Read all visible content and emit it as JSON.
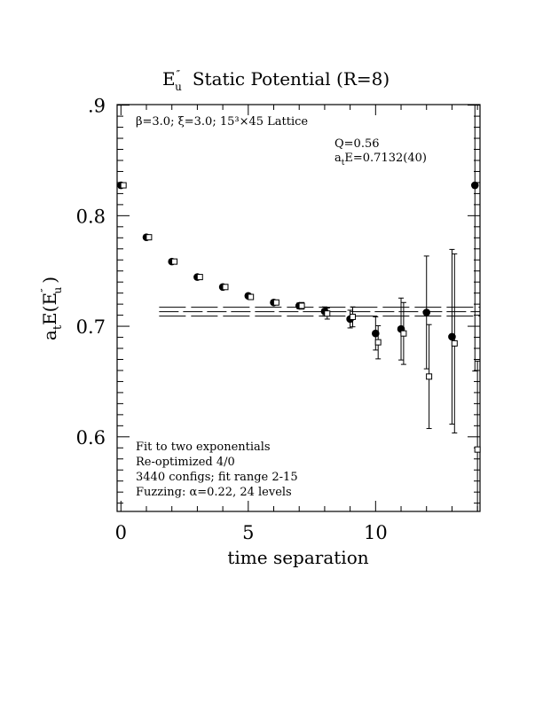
{
  "chart_data": {
    "type": "scatter",
    "title_main": "E",
    "title_sup": "″",
    "title_sub": "u",
    "title_rest": "Static Potential (R=8)",
    "xlabel": "time separation",
    "ylabel_a": "a",
    "ylabel_t": "t",
    "ylabel_E": "E(E",
    "ylabel_sup": "″",
    "ylabel_sub": "u",
    "ylabel_close": ")",
    "xlim": [
      -0.15,
      14.1
    ],
    "ylim": [
      0.5325,
      0.9005
    ],
    "x_ticks": [
      0,
      5,
      10
    ],
    "x_tick_labels": [
      "0",
      "5",
      "10"
    ],
    "y_ticks": [
      0.6,
      0.7,
      0.8,
      0.9
    ],
    "y_tick_labels": [
      "0.6",
      "0.7",
      "0.8",
      ".9"
    ],
    "grid": false,
    "legend": "none",
    "annotations": {
      "lattice": "β=3.0; ξ=3.0; 15³×45 Lattice",
      "q_value": "Q=0.56",
      "energy_a": "a",
      "energy_t": "t",
      "energy_rest": "E=0.7132(40)",
      "fit_lines": [
        "Fit to two exponentials",
        "Re-optimized 4/0",
        "3440 configs; fit range 2-15",
        "Fuzzing: α=0.22, 24 levels"
      ]
    },
    "fit": {
      "x_start": 1.5,
      "x_end": 14.1,
      "value": 0.7132,
      "error": 0.004
    },
    "series": [
      {
        "marker": "filled-circle",
        "points": [
          {
            "x": 0,
            "y": 0.8275,
            "err": 0.002
          },
          {
            "x": 1,
            "y": 0.7805,
            "err": 0.0015
          },
          {
            "x": 2,
            "y": 0.7585,
            "err": 0.0015
          },
          {
            "x": 3,
            "y": 0.7445,
            "err": 0.0015
          },
          {
            "x": 4,
            "y": 0.7355,
            "err": 0.0015
          },
          {
            "x": 5,
            "y": 0.7275,
            "err": 0.0015
          },
          {
            "x": 6,
            "y": 0.7215,
            "err": 0.002
          },
          {
            "x": 7,
            "y": 0.7185,
            "err": 0.0025
          },
          {
            "x": 8,
            "y": 0.7135,
            "err": 0.004
          },
          {
            "x": 9,
            "y": 0.7065,
            "err": 0.008
          },
          {
            "x": 10,
            "y": 0.6935,
            "err": 0.015
          },
          {
            "x": 11,
            "y": 0.6975,
            "err": 0.028
          },
          {
            "x": 12,
            "y": 0.7125,
            "err": 0.051
          },
          {
            "x": 13,
            "y": 0.6905,
            "err": 0.079
          },
          {
            "x": 13.9,
            "y": 0.8275,
            "err": 0.168
          }
        ]
      },
      {
        "marker": "open-square",
        "points": [
          {
            "x": 0.1,
            "y": 0.8275,
            "err": 0.0015
          },
          {
            "x": 1.1,
            "y": 0.7805,
            "err": 0.0015
          },
          {
            "x": 2.1,
            "y": 0.7585,
            "err": 0.0015
          },
          {
            "x": 3.1,
            "y": 0.7445,
            "err": 0.0015
          },
          {
            "x": 4.1,
            "y": 0.7355,
            "err": 0.0015
          },
          {
            "x": 5.1,
            "y": 0.7265,
            "err": 0.002
          },
          {
            "x": 6.1,
            "y": 0.7215,
            "err": 0.002
          },
          {
            "x": 7.1,
            "y": 0.7185,
            "err": 0.003
          },
          {
            "x": 8.1,
            "y": 0.7115,
            "err": 0.005
          },
          {
            "x": 9.1,
            "y": 0.7085,
            "err": 0.009
          },
          {
            "x": 10.1,
            "y": 0.6855,
            "err": 0.015
          },
          {
            "x": 11.1,
            "y": 0.6935,
            "err": 0.028
          },
          {
            "x": 12.1,
            "y": 0.6545,
            "err": 0.047
          },
          {
            "x": 13.1,
            "y": 0.6845,
            "err": 0.081
          },
          {
            "x": 14.0,
            "y": 0.5885,
            "err": 0.08
          }
        ]
      }
    ]
  }
}
